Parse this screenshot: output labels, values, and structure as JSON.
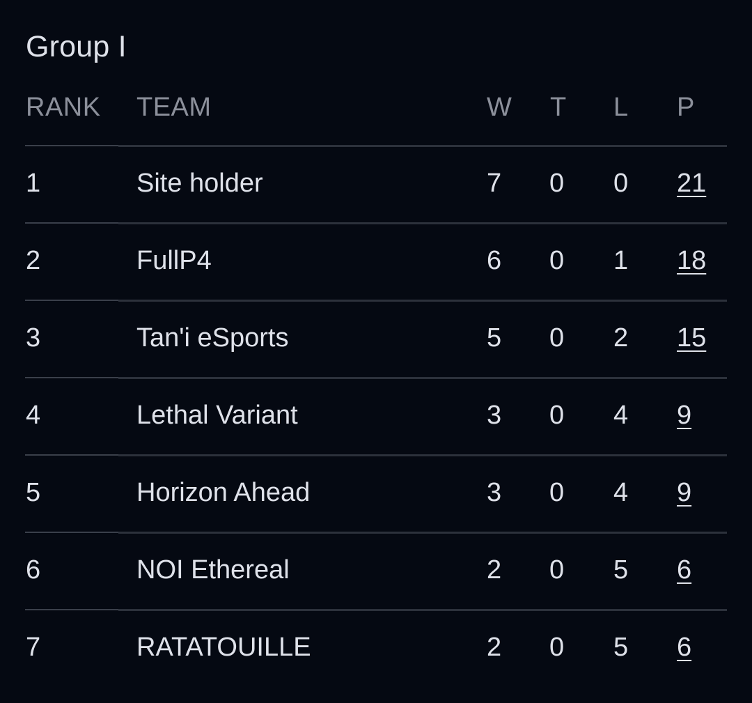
{
  "group": {
    "title": "Group I"
  },
  "table": {
    "headers": {
      "rank": "RANK",
      "team": "TEAM",
      "w": "W",
      "t": "T",
      "l": "L",
      "p": "P"
    },
    "rows": [
      {
        "rank": "1",
        "team": "Site holder",
        "w": "7",
        "t": "0",
        "l": "0",
        "p": "21"
      },
      {
        "rank": "2",
        "team": "FullP4",
        "w": "6",
        "t": "0",
        "l": "1",
        "p": "18"
      },
      {
        "rank": "3",
        "team": "Tan'i eSports",
        "w": "5",
        "t": "0",
        "l": "2",
        "p": "15"
      },
      {
        "rank": "4",
        "team": "Lethal Variant",
        "w": "3",
        "t": "0",
        "l": "4",
        "p": "9"
      },
      {
        "rank": "5",
        "team": "Horizon Ahead",
        "w": "3",
        "t": "0",
        "l": "4",
        "p": "9"
      },
      {
        "rank": "6",
        "team": "NOI Ethereal",
        "w": "2",
        "t": "0",
        "l": "5",
        "p": "6"
      },
      {
        "rank": "7",
        "team": "RATATOUILLE",
        "w": "2",
        "t": "0",
        "l": "5",
        "p": "6"
      }
    ]
  },
  "colors": {
    "background": "#050912",
    "text": "#dfe2ea",
    "header_text": "#8c909b",
    "divider": "#2c313b"
  }
}
